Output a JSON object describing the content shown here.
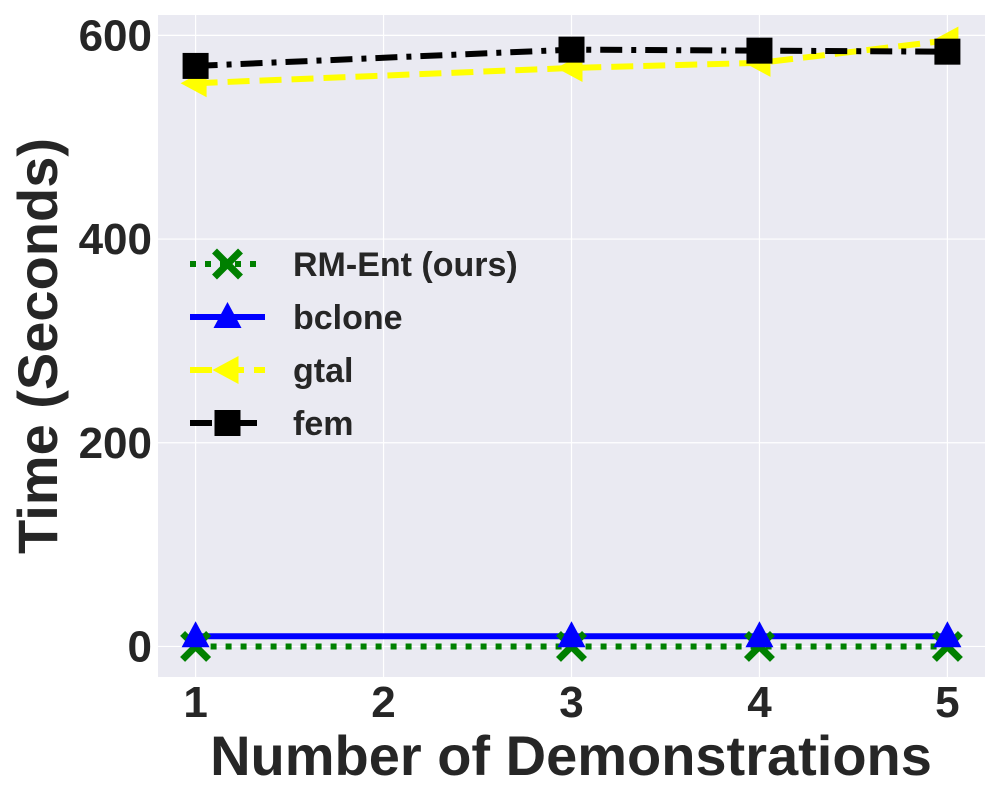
{
  "chart_data": {
    "type": "line",
    "title": "",
    "xlabel": "Number of Demonstrations",
    "ylabel": "Time (Seconds)",
    "xlim": [
      0.8,
      5.2
    ],
    "ylim": [
      -30,
      620
    ],
    "xticks": [
      1,
      2,
      3,
      4,
      5
    ],
    "yticks": [
      0,
      200,
      400,
      600
    ],
    "xtick_labels": [
      "1",
      "2",
      "3",
      "4",
      "5"
    ],
    "ytick_labels": [
      "0",
      "200",
      "400",
      "600"
    ],
    "grid": true,
    "legend_position": "center-left",
    "background_color": "#eaeaf2",
    "series": [
      {
        "name": "RM-Ent (ours)",
        "x": [
          1,
          3,
          4,
          5
        ],
        "y": [
          0,
          0,
          0,
          0
        ],
        "color": "#008000",
        "linestyle": "dotted",
        "marker": "x"
      },
      {
        "name": "bclone",
        "x": [
          1,
          3,
          4,
          5
        ],
        "y": [
          10,
          10,
          10,
          10
        ],
        "color": "#0000ff",
        "linestyle": "solid",
        "marker": "triangle-up"
      },
      {
        "name": "gtal",
        "x": [
          1,
          3,
          4,
          5
        ],
        "y": [
          553,
          568,
          573,
          595
        ],
        "color": "#ffff00",
        "linestyle": "dashed",
        "marker": "triangle-left"
      },
      {
        "name": "fem",
        "x": [
          1,
          3,
          4,
          5
        ],
        "y": [
          570,
          586,
          585,
          584
        ],
        "color": "#000000",
        "linestyle": "dashdot",
        "marker": "square"
      }
    ]
  }
}
